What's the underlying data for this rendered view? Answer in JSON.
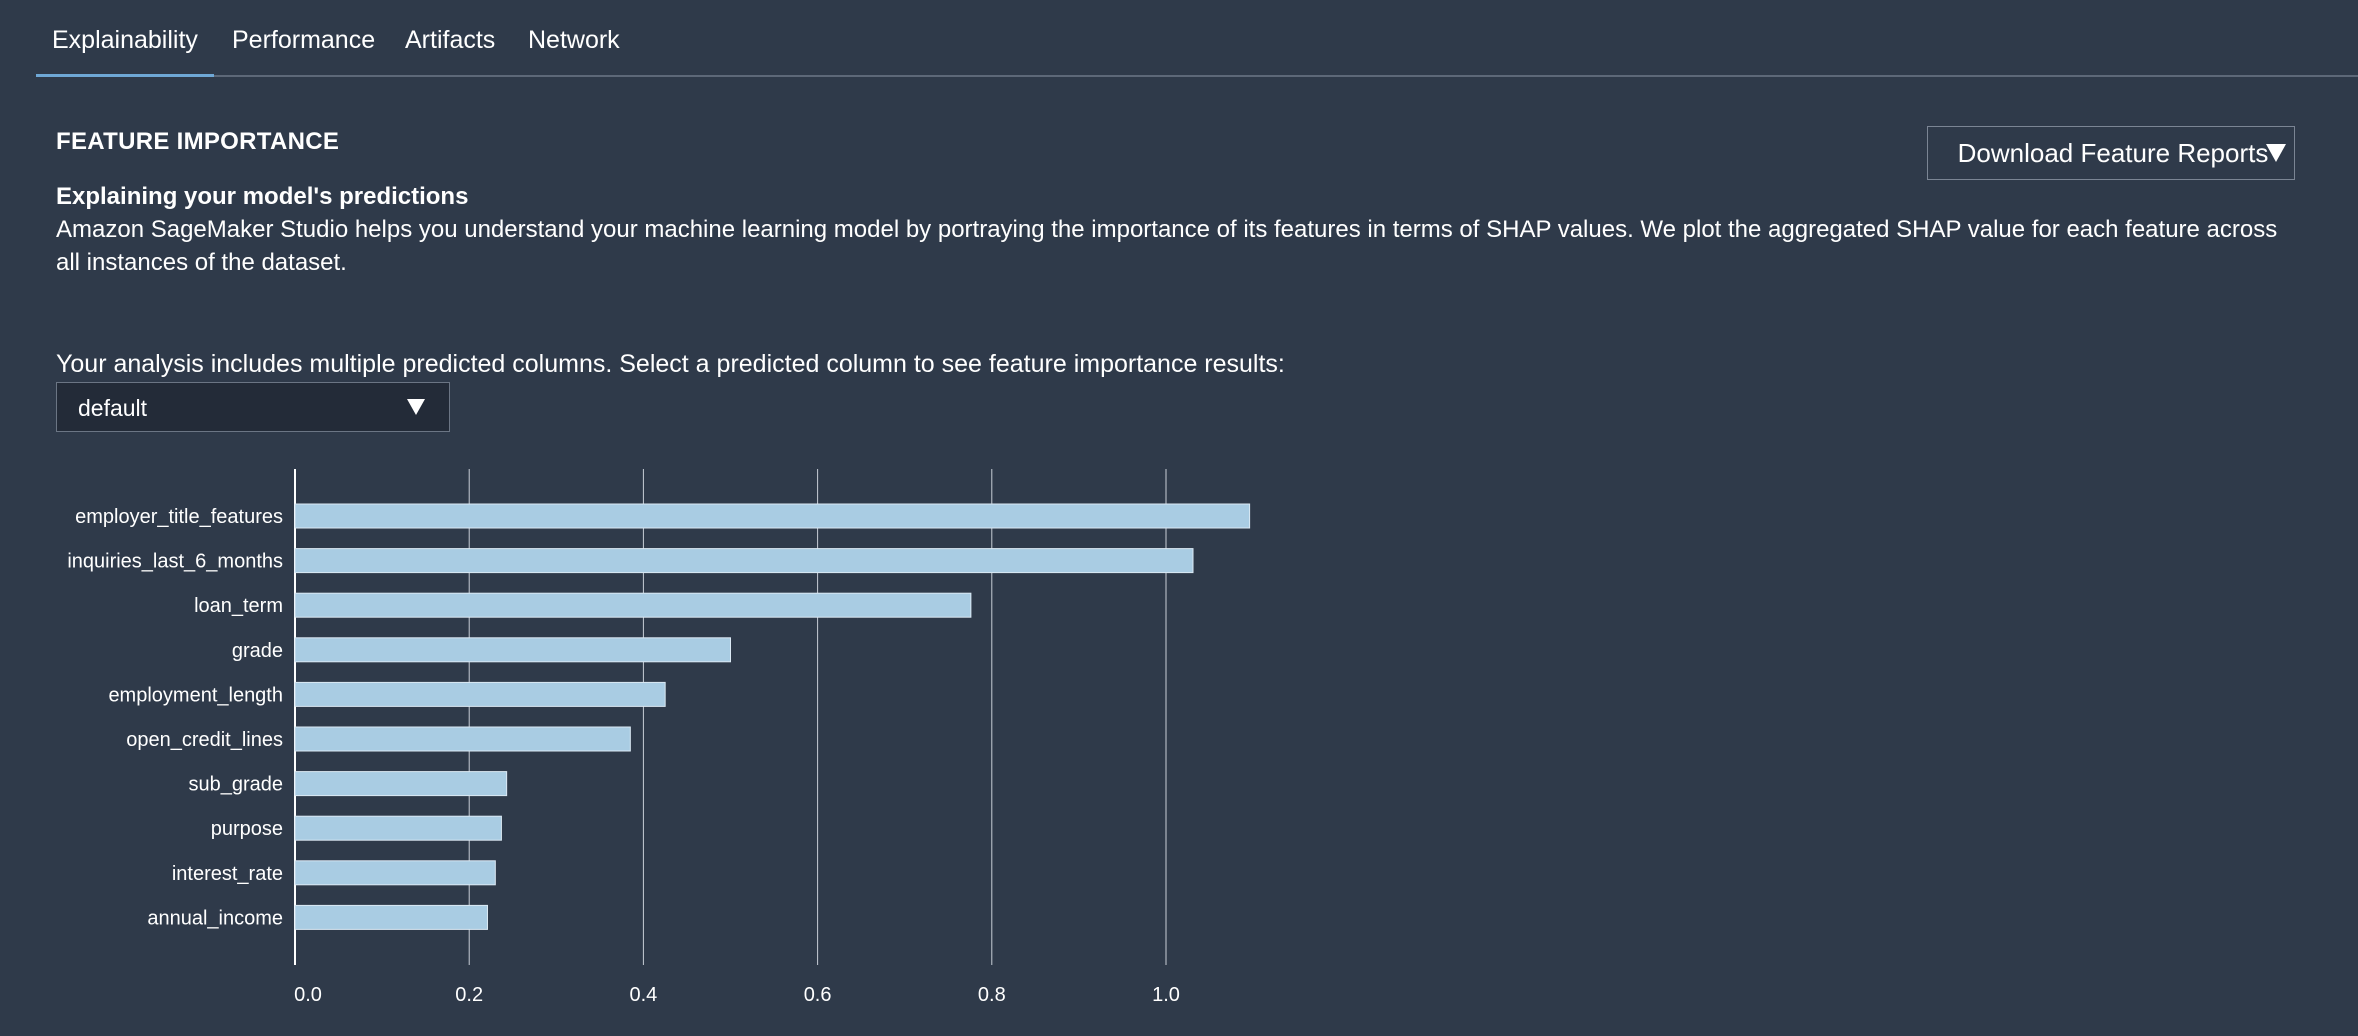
{
  "tabs": [
    {
      "label": "Explainability",
      "active": true
    },
    {
      "label": "Performance",
      "active": false
    },
    {
      "label": "Artifacts",
      "active": false
    },
    {
      "label": "Network",
      "active": false
    }
  ],
  "section_heading": "FEATURE IMPORTANCE",
  "download_button_label": "Download Feature Reports",
  "subheading": "Explaining your model's predictions",
  "description": "Amazon SageMaker Studio helps you understand your machine learning model by portraying the importance of its features in terms of SHAP values. We plot the aggregated SHAP value for each feature across all instances of the dataset.",
  "select_prompt": "Your analysis includes multiple predicted columns. Select a predicted column to see feature importance results:",
  "select_value": "default",
  "colors": {
    "background": "#2f3a4a",
    "bar": "#a9cce3",
    "tab_underline": "#6fa8d6"
  },
  "chart_data": {
    "type": "bar",
    "orientation": "horizontal",
    "categories": [
      "employer_title_features",
      "inquiries_last_6_months",
      "loan_term",
      "grade",
      "employment_length",
      "open_credit_lines",
      "sub_grade",
      "purpose",
      "interest_rate",
      "annual_income"
    ],
    "values": [
      1.096,
      1.031,
      0.776,
      0.5,
      0.425,
      0.385,
      0.243,
      0.237,
      0.23,
      0.221
    ],
    "xticks": [
      "0.0",
      "0.2",
      "0.4",
      "0.6",
      "0.8",
      "1.0"
    ],
    "xlim": [
      0,
      1.1
    ],
    "grid": true,
    "title": "",
    "xlabel": "",
    "ylabel": ""
  }
}
